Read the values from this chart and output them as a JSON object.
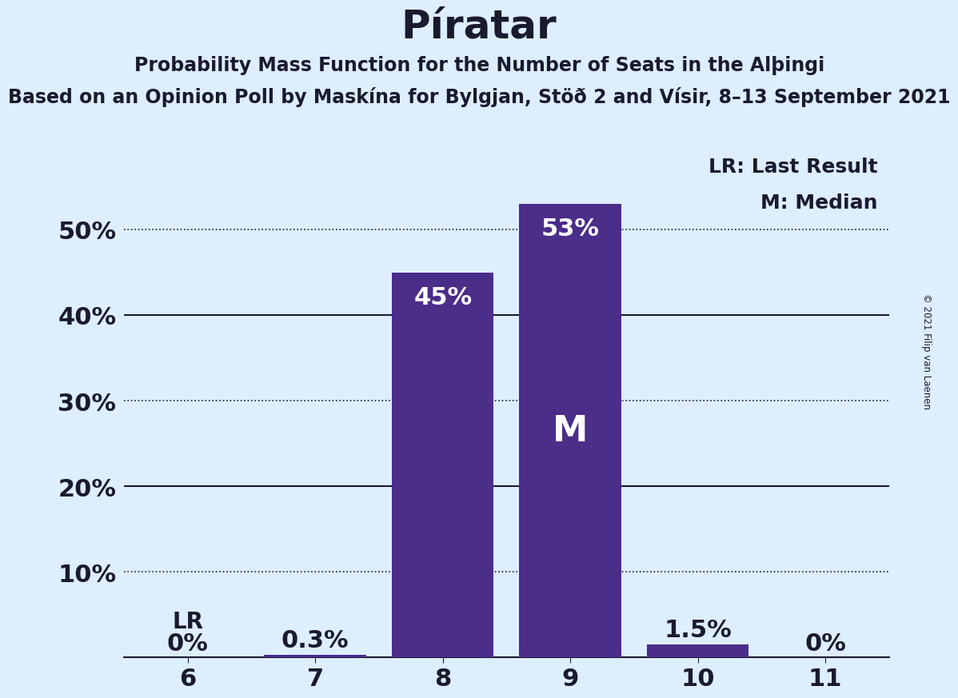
{
  "title": "Píratar",
  "subtitle1": "Probability Mass Function for the Number of Seats in the Alþingi",
  "subtitle2": "Based on an Opinion Poll by Maskína for Bylgjan, Stöð 2 and Vísir, 8–13 September 2021",
  "copyright": "© 2021 Filip van Laenen",
  "categories": [
    6,
    7,
    8,
    9,
    10,
    11
  ],
  "values": [
    0.0,
    0.3,
    45.0,
    53.0,
    1.5,
    0.0
  ],
  "bar_labels": [
    "0%",
    "0.3%",
    "45%",
    "53%",
    "1.5%",
    "0%"
  ],
  "bar_color": "#4b2d8a",
  "median_bar": 9,
  "lr_bar": 6,
  "median_label": "M",
  "lr_note": "LR: Last Result",
  "median_note": "M: Median",
  "background_color": "#ddeeff",
  "bar_label_color_inside": "#ffffff",
  "bar_label_color_outside": "#1a1a2e",
  "lr_text_color": "#1a1a2e",
  "ylim": [
    0,
    60
  ],
  "yticks": [
    0,
    10,
    20,
    30,
    40,
    50,
    60
  ],
  "ytick_labels": [
    "",
    "10%",
    "20%",
    "30%",
    "40%",
    "50%",
    ""
  ],
  "solid_yticks": [
    20,
    40
  ],
  "dotted_yticks": [
    10,
    30,
    50
  ],
  "title_fontsize": 36,
  "subtitle_fontsize": 17,
  "axis_label_fontsize": 22,
  "bar_label_fontsize": 22,
  "legend_fontsize": 18,
  "lr_label_fontsize": 20,
  "median_fontsize": 32
}
